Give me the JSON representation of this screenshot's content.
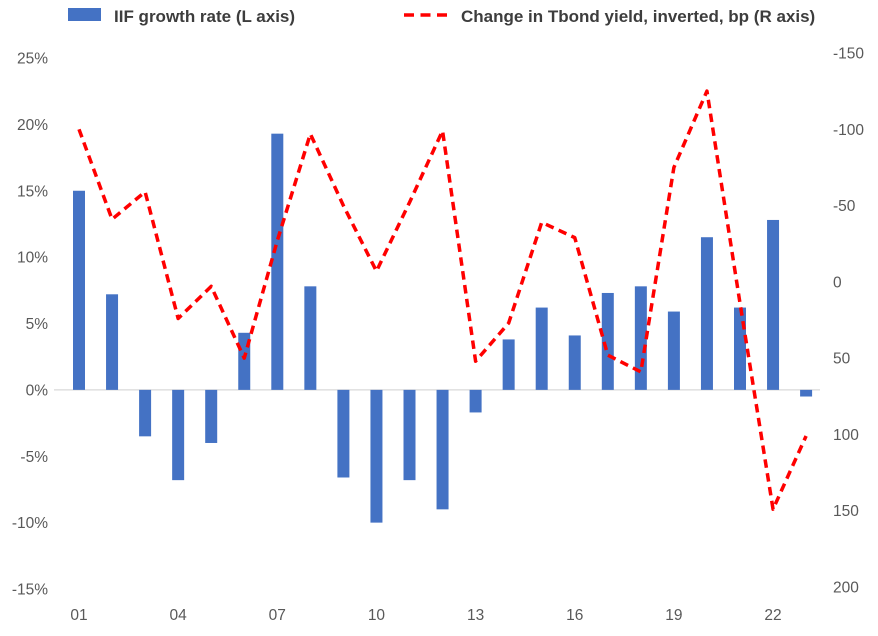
{
  "chart_data": {
    "type": "bar+line (dual axis combo)",
    "title": "",
    "legend_position": "top",
    "gridlines": "zero-line-only",
    "grid_color": "#D9D9D9",
    "background_color": "#FFFFFF",
    "axis_text_color": "#595959",
    "legend_text_color": "#3D3D3D",
    "categories": [
      "01",
      "02",
      "03",
      "04",
      "05",
      "06",
      "07",
      "08",
      "09",
      "10",
      "11",
      "12",
      "13",
      "14",
      "15",
      "16",
      "17",
      "18",
      "19",
      "20",
      "21",
      "22",
      "23"
    ],
    "x_tick_labels": [
      "01",
      "04",
      "07",
      "10",
      "13",
      "16",
      "19",
      "22"
    ],
    "series": [
      {
        "name": "IIF growth rate (L axis)",
        "type": "bar",
        "axis": "left",
        "color": "#4472C4",
        "values": [
          15.0,
          7.2,
          -3.5,
          -6.8,
          -4.0,
          4.3,
          19.3,
          7.8,
          -6.6,
          -10.0,
          -6.8,
          -9.0,
          -1.7,
          3.8,
          6.2,
          4.1,
          7.3,
          7.8,
          5.9,
          11.5,
          6.2,
          12.8,
          -0.5
        ]
      },
      {
        "name": "Change in Tbond yield, inverted, bp (R axis)",
        "type": "dashed-line",
        "axis": "right",
        "color": "#FF0000",
        "values": [
          -100,
          -41,
          -59,
          24,
          3,
          50,
          -27,
          -97,
          -50,
          -7,
          -52,
          -99,
          52,
          27,
          -39,
          -29,
          48,
          59,
          -75,
          -125,
          14,
          149,
          101
        ]
      }
    ],
    "left_axis": {
      "unit": "percent",
      "min": -15,
      "max": 25,
      "step": 5,
      "tick_labels": [
        "25%",
        "20%",
        "15%",
        "10%",
        "5%",
        "0%",
        "-5%",
        "-10%",
        "-15%"
      ]
    },
    "right_axis": {
      "unit": "basis points",
      "min": -150,
      "max": 200,
      "step": 50,
      "inverted": true,
      "tick_labels": [
        "-150",
        "-100",
        "-50",
        "0",
        "50",
        "100",
        "150",
        "200"
      ]
    }
  },
  "legend": {
    "bar_series_label": "IIF growth rate (L axis)",
    "line_series_label": "Change in Tbond yield, inverted, bp (R axis)"
  }
}
